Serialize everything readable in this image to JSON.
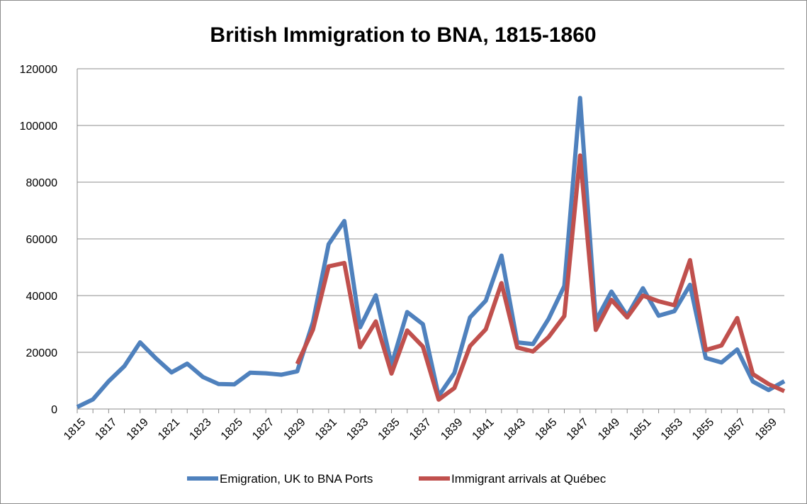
{
  "chart_data": {
    "type": "line",
    "title": "British Immigration to BNA, 1815-1860",
    "xlabel": "",
    "ylabel": "",
    "ylim": [
      0,
      120000
    ],
    "yticks": [
      "0",
      "20000",
      "40000",
      "60000",
      "80000",
      "100000",
      "120000"
    ],
    "x": [
      1815,
      1816,
      1817,
      1818,
      1819,
      1820,
      1821,
      1822,
      1823,
      1824,
      1825,
      1826,
      1827,
      1828,
      1829,
      1830,
      1831,
      1832,
      1833,
      1834,
      1835,
      1836,
      1837,
      1838,
      1839,
      1840,
      1841,
      1842,
      1843,
      1844,
      1845,
      1846,
      1847,
      1848,
      1849,
      1850,
      1851,
      1852,
      1853,
      1854,
      1855,
      1856,
      1857,
      1858,
      1859,
      1860
    ],
    "xtick_labels": [
      "1815",
      "1817",
      "1819",
      "1821",
      "1823",
      "1825",
      "1827",
      "1829",
      "1831",
      "1833",
      "1835",
      "1837",
      "1839",
      "1841",
      "1843",
      "1845",
      "1847",
      "1849",
      "1851",
      "1853",
      "1855",
      "1857",
      "1859"
    ],
    "grid": true,
    "legend_position": "bottom",
    "series": [
      {
        "name": "Emigration, UK to BNA Ports",
        "color": "#4f81bd",
        "values": [
          700,
          3400,
          9800,
          15100,
          23500,
          17900,
          12900,
          16000,
          11300,
          8800,
          8700,
          12800,
          12600,
          12100,
          13300,
          30600,
          58100,
          66300,
          28800,
          40100,
          15600,
          34200,
          29900,
          4600,
          12700,
          32300,
          38200,
          54100,
          23500,
          22900,
          31800,
          43400,
          109700,
          31100,
          41400,
          32900,
          42600,
          32900,
          34500,
          43800,
          18000,
          16400,
          21000,
          9700,
          6700,
          9800
        ]
      },
      {
        "name": "Immigrant arrivals at Québec",
        "color": "#c0504d",
        "values": [
          null,
          null,
          null,
          null,
          null,
          null,
          null,
          null,
          null,
          null,
          null,
          null,
          null,
          null,
          15900,
          28000,
          50300,
          51500,
          21800,
          30900,
          12500,
          27700,
          22000,
          3300,
          7400,
          22200,
          28100,
          44400,
          21700,
          20300,
          25400,
          32800,
          89400,
          27900,
          38500,
          32300,
          40000,
          38000,
          36600,
          52500,
          20800,
          22400,
          32100,
          12300,
          8800,
          6300
        ]
      }
    ]
  }
}
